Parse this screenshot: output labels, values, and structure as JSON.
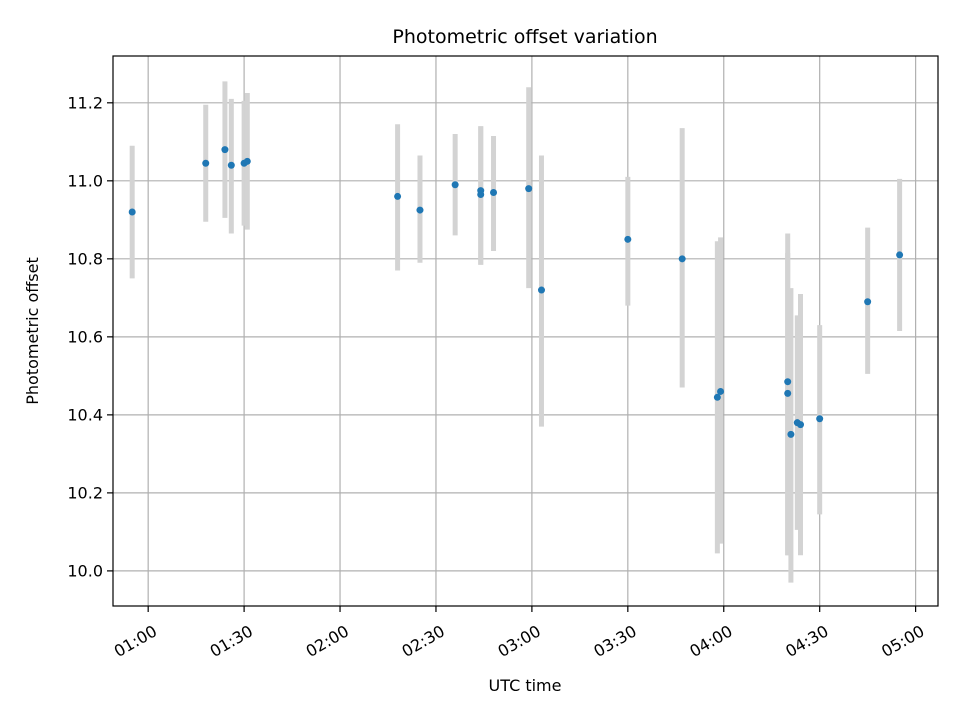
{
  "chart_data": {
    "type": "scatter",
    "title": "Photometric offset variation",
    "xlabel": "UTC time",
    "ylabel": "Photometric offset",
    "x_ticks": [
      "01:00",
      "01:30",
      "02:00",
      "02:30",
      "03:00",
      "03:30",
      "04:00",
      "04:30",
      "05:00"
    ],
    "y_ticks": [
      "10.0",
      "10.2",
      "10.4",
      "10.6",
      "10.8",
      "11.0",
      "11.2"
    ],
    "xlim": [
      "00:49",
      "05:07"
    ],
    "ylim": [
      9.91,
      11.32
    ],
    "grid": true,
    "colors": {
      "point": "#1f77b4",
      "errorbar": "#d3d3d3",
      "grid": "#b0b0b0"
    },
    "series": [
      {
        "points": [
          {
            "x": "00:55",
            "y": 10.92,
            "err_low": 10.75,
            "err_high": 11.09
          },
          {
            "x": "01:18",
            "y": 11.045,
            "err_low": 10.895,
            "err_high": 11.195
          },
          {
            "x": "01:24",
            "y": 11.08,
            "err_low": 10.905,
            "err_high": 11.255
          },
          {
            "x": "01:26",
            "y": 11.04,
            "err_low": 10.865,
            "err_high": 11.21
          },
          {
            "x": "01:30",
            "y": 11.045,
            "err_low": 10.885,
            "err_high": 11.205
          },
          {
            "x": "01:31",
            "y": 11.05,
            "err_low": 10.875,
            "err_high": 11.225
          },
          {
            "x": "02:18",
            "y": 10.96,
            "err_low": 10.77,
            "err_high": 11.145
          },
          {
            "x": "02:25",
            "y": 10.925,
            "err_low": 10.79,
            "err_high": 11.065
          },
          {
            "x": "02:36",
            "y": 10.99,
            "err_low": 10.86,
            "err_high": 11.12
          },
          {
            "x": "02:44",
            "y": 10.975,
            "err_low": 10.785,
            "err_high": 11.14
          },
          {
            "x": "02:44",
            "y": 10.965,
            "err_low": 10.785,
            "err_high": 11.14
          },
          {
            "x": "02:48",
            "y": 10.97,
            "err_low": 10.82,
            "err_high": 11.115
          },
          {
            "x": "02:59",
            "y": 10.98,
            "err_low": 10.725,
            "err_high": 11.24
          },
          {
            "x": "03:03",
            "y": 10.72,
            "err_low": 10.37,
            "err_high": 11.065
          },
          {
            "x": "03:30",
            "y": 10.85,
            "err_low": 10.68,
            "err_high": 11.01
          },
          {
            "x": "03:47",
            "y": 10.8,
            "err_low": 10.47,
            "err_high": 11.135
          },
          {
            "x": "03:58",
            "y": 10.445,
            "err_low": 10.045,
            "err_high": 10.845
          },
          {
            "x": "03:59",
            "y": 10.46,
            "err_low": 10.07,
            "err_high": 10.855
          },
          {
            "x": "04:20",
            "y": 10.455,
            "err_low": 10.04,
            "err_high": 10.865
          },
          {
            "x": "04:20",
            "y": 10.485,
            "err_low": 10.04,
            "err_high": 10.815
          },
          {
            "x": "04:21",
            "y": 10.35,
            "err_low": 9.97,
            "err_high": 10.725
          },
          {
            "x": "04:23",
            "y": 10.38,
            "err_low": 10.105,
            "err_high": 10.655
          },
          {
            "x": "04:24",
            "y": 10.375,
            "err_low": 10.04,
            "err_high": 10.71
          },
          {
            "x": "04:30",
            "y": 10.39,
            "err_low": 10.145,
            "err_high": 10.63
          },
          {
            "x": "04:45",
            "y": 10.69,
            "err_low": 10.505,
            "err_high": 10.88
          },
          {
            "x": "04:55",
            "y": 10.81,
            "err_low": 10.615,
            "err_high": 11.005
          }
        ]
      }
    ]
  }
}
